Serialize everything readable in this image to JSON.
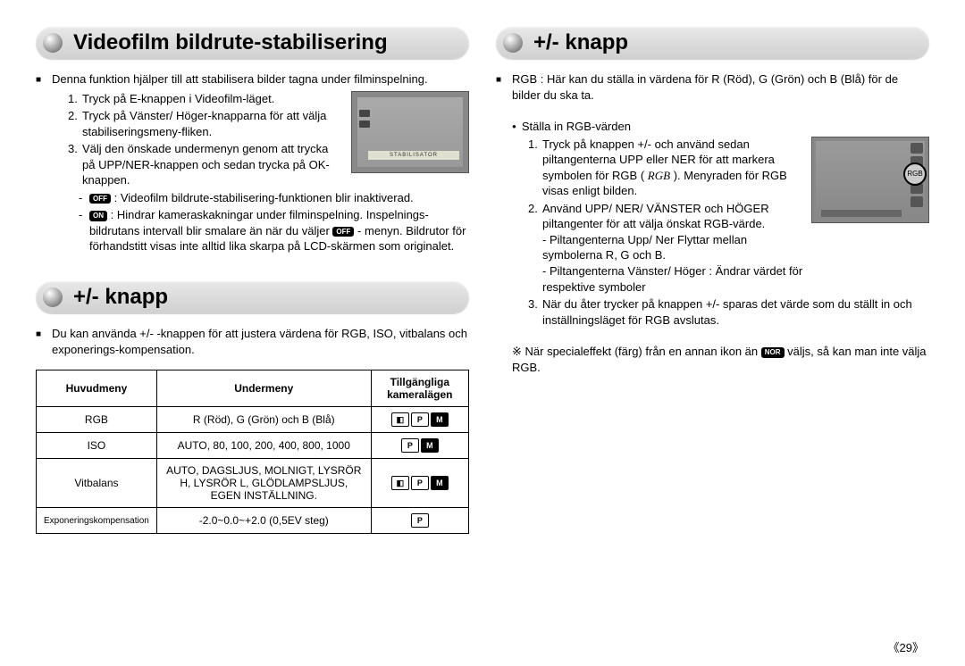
{
  "left": {
    "section1": {
      "title": "Videofilm bildrute-stabilisering",
      "intro": "Denna funktion hjälper till att stabilisera bilder tagna under filminspelning.",
      "steps": [
        "Tryck på E-knappen i Videofilm-läget.",
        "Tryck på Vänster/ Höger-knapparna för att välja stabiliseringsmeny-fliken.",
        "Välj den önskade undermenyn genom att trycka på UPP/NER-knappen och sedan trycka på OK-knappen."
      ],
      "off_badge": "OFF",
      "off_text": ": Videofilm bildrute-stabilisering-funktionen blir inaktiverad.",
      "on_badge": "ON",
      "on_text": ": Hindrar kameraskakningar under filminspelning. Inspelnings-bildrutans intervall blir smalare än när du väljer",
      "on_text_suffix": "- menyn. Bildrutor för förhandstitt visas inte alltid lika skarpa på LCD-skärmen som originalet.",
      "screenshot_label": "STABILISATOR"
    },
    "section2": {
      "title": "+/- knapp",
      "intro": "Du kan använda +/- -knappen för att justera värdena för RGB, ISO, vitbalans och exponerings-kompensation.",
      "table": {
        "headers": [
          "Huvudmeny",
          "Undermeny",
          "Tillgängliga kameralägen"
        ],
        "rows": [
          {
            "main": "RGB",
            "sub": "R (Röd), G (Grön) och B (Blå)",
            "modes": [
              "cam",
              "P",
              "M"
            ]
          },
          {
            "main": "ISO",
            "sub": "AUTO, 80, 100, 200, 400, 800, 1000",
            "modes": [
              "P",
              "M"
            ]
          },
          {
            "main": "Vitbalans",
            "sub": "AUTO, DAGSLJUS, MOLNIGT, LYSRÖR H, LYSRÖR L, GLÖDLAMPSLJUS, EGEN INSTÄLLNING.",
            "modes": [
              "cam",
              "P",
              "M"
            ]
          },
          {
            "main": "Exponeringskompensation",
            "sub": "-2.0~0.0~+2.0 (0,5EV steg)",
            "modes": [
              "P"
            ]
          }
        ]
      }
    }
  },
  "right": {
    "section1": {
      "title": "+/- knapp",
      "rgb_intro": "RGB : Här kan du ställa in värdena för R (Röd), G (Grön) och B (Blå) för de bilder du ska ta.",
      "subhead": "Ställa in RGB-värden",
      "step1": "Tryck på knappen +/- och använd sedan piltangenterna UPP eller NER för att markera symbolen för RGB (",
      "step1_rgb": "RGB",
      "step1_suffix": "). Menyraden för RGB visas enligt bilden.",
      "step2": "Använd UPP/ NER/ VÄNSTER och HÖGER piltangenter för att välja önskat RGB-värde.",
      "step2_sub1": "- Piltangenterna Upp/ Ner Flyttar mellan symbolerna R, G och B.",
      "step2_sub2": "- Piltangenterna Vänster/ Höger : Ändrar värdet för respektive symboler",
      "step3": "När du åter trycker på knappen +/- sparas det värde som du ställt in och inställningsläget för RGB avslutas.",
      "note_prefix": "※ När specialeffekt (färg) från en annan ikon än",
      "nor_badge": "NOR",
      "note_suffix": "väljs, så kan man inte välja RGB."
    }
  },
  "page_number": "《29》",
  "colors": {
    "badge_bg": "#000000",
    "badge_fg": "#ffffff"
  }
}
